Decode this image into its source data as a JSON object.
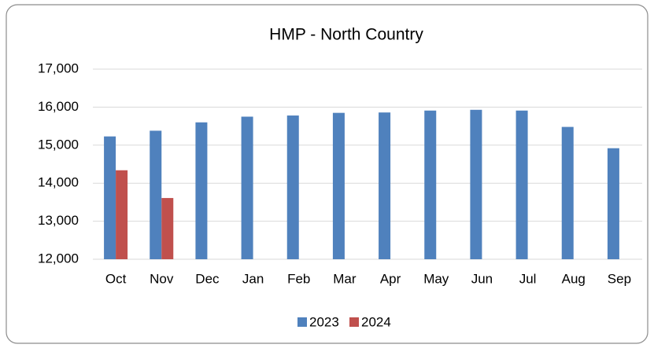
{
  "chart_data": {
    "type": "bar",
    "title": "HMP - North Country",
    "categories": [
      "Oct",
      "Nov",
      "Dec",
      "Jan",
      "Feb",
      "Mar",
      "Apr",
      "May",
      "Jun",
      "Jul",
      "Aug",
      "Sep"
    ],
    "series": [
      {
        "name": "2023",
        "color": "#4f81bd",
        "values": [
          15230,
          15380,
          15600,
          15750,
          15780,
          15850,
          15860,
          15910,
          15930,
          15910,
          15480,
          14920
        ]
      },
      {
        "name": "2024",
        "color": "#c0504d",
        "values": [
          14340,
          13610,
          null,
          null,
          null,
          null,
          null,
          null,
          null,
          null,
          null,
          null
        ]
      }
    ],
    "ylim": [
      12000,
      17000
    ],
    "yticks": [
      {
        "value": 12000,
        "label": "12,000"
      },
      {
        "value": 13000,
        "label": "13,000"
      },
      {
        "value": 14000,
        "label": "14,000"
      },
      {
        "value": 15000,
        "label": "15,000"
      },
      {
        "value": 16000,
        "label": "16,000"
      },
      {
        "value": 17000,
        "label": "17,000"
      }
    ],
    "grid": true,
    "legend": "bottom"
  }
}
